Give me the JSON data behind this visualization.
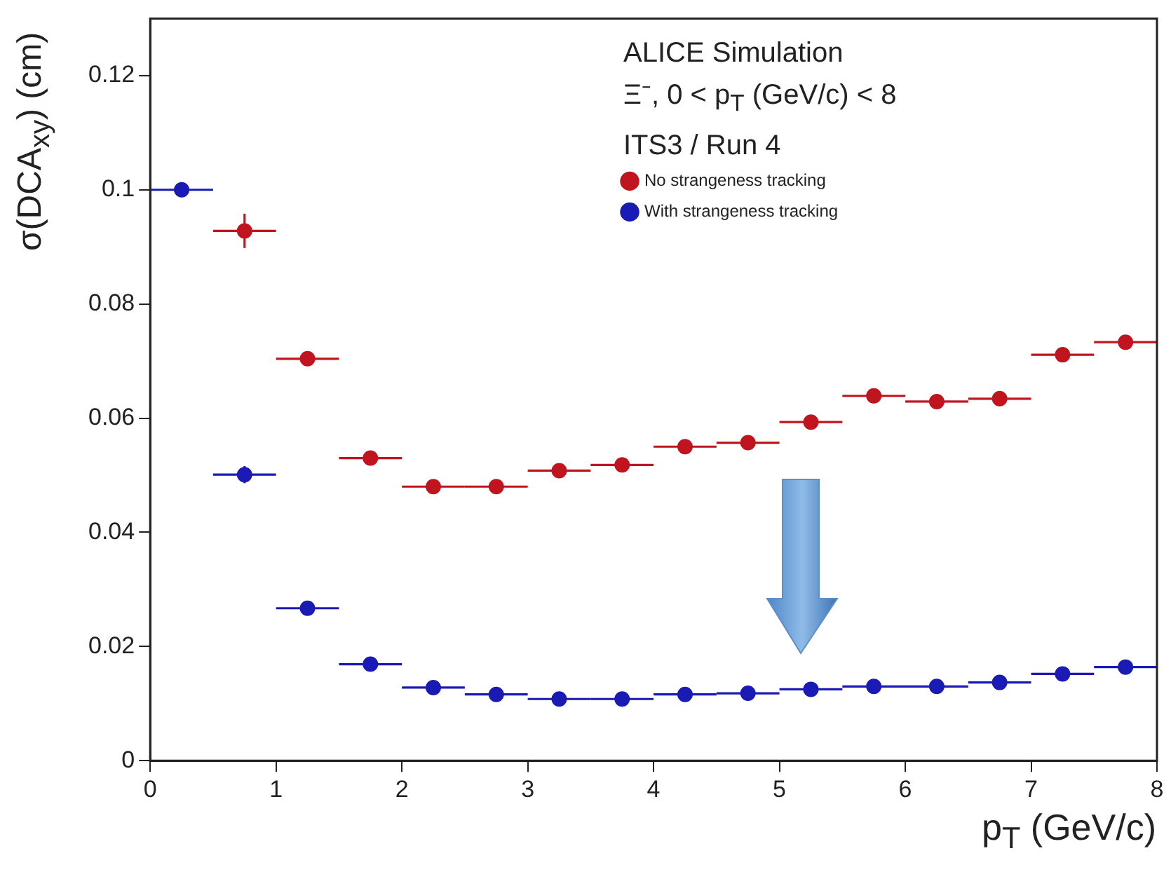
{
  "chart_data": {
    "type": "scatter",
    "xlabel": "p$_{T}$ (GeV/c)",
    "ylabel": "σ(DCA$_{xy}$) (cm)",
    "annotations": [
      "ALICE Simulation",
      "Ξ⁻, 0 < p$_{T}$ (GeV/c) < 8",
      "ITS3 / Run 4"
    ],
    "x": [
      0.25,
      0.75,
      1.25,
      1.75,
      2.25,
      2.75,
      3.25,
      3.75,
      4.25,
      4.75,
      5.25,
      5.75,
      6.25,
      6.75,
      7.25,
      7.75
    ],
    "series": [
      {
        "name": "No strangeness tracking",
        "color": "#c0141e",
        "values": [
          null,
          0.0928,
          0.0704,
          0.053,
          0.048,
          0.048,
          0.0508,
          0.0518,
          0.055,
          0.0557,
          0.0593,
          0.0639,
          0.0629,
          0.0634,
          0.0711,
          0.0733
        ],
        "errors": [
          null,
          0.003,
          null,
          null,
          null,
          null,
          null,
          null,
          null,
          null,
          null,
          null,
          null,
          null,
          null,
          null
        ],
        "xerrors": [
          null,
          0.25,
          0.25,
          0.25,
          0.25,
          0.25,
          0.25,
          0.25,
          0.25,
          0.25,
          0.25,
          0.25,
          0.25,
          0.25,
          0.25,
          0.25
        ]
      },
      {
        "name": "With strangeness tracking",
        "color": "#1a1ab4",
        "values": [
          0.1,
          0.0501,
          0.0267,
          0.0169,
          0.0128,
          0.0116,
          0.0108,
          0.0108,
          0.0116,
          0.0118,
          0.0125,
          0.013,
          0.013,
          0.0137,
          0.0152,
          0.0164
        ],
        "errors": [
          null,
          0.0015,
          null,
          null,
          null,
          null,
          null,
          null,
          null,
          null,
          null,
          null,
          null,
          null,
          null,
          null
        ],
        "xerrors": [
          0.25,
          0.25,
          0.25,
          0.25,
          0.25,
          0.25,
          0.25,
          0.25,
          0.25,
          0.25,
          0.25,
          0.25,
          0.25,
          0.25,
          0.25,
          0.25
        ]
      }
    ],
    "xlim": [
      0,
      8
    ],
    "xticks": [
      0,
      1,
      2,
      3,
      4,
      5,
      6,
      7,
      8
    ],
    "ylim": [
      0,
      0.13
    ],
    "yticks": [
      0,
      0.02,
      0.04,
      0.06,
      0.08,
      0.1,
      0.12
    ],
    "grid": false,
    "legend": "top right",
    "marker": "circle"
  }
}
